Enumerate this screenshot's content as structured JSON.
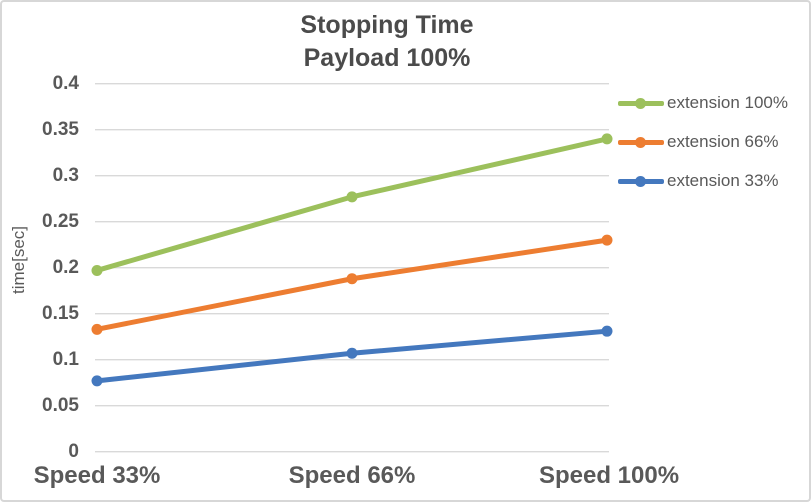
{
  "chart_data": {
    "type": "line",
    "title": "Stopping Time",
    "subtitle": "Payload 100%",
    "categories": [
      "Speed 33%",
      "Speed 66%",
      "Speed 100%"
    ],
    "series": [
      {
        "name": "extension 100%",
        "color": "#9CC05C",
        "values": [
          0.197,
          0.277,
          0.34
        ]
      },
      {
        "name": "extension 66%",
        "color": "#ED7D31",
        "values": [
          0.133,
          0.188,
          0.23
        ]
      },
      {
        "name": "extension 33%",
        "color": "#4478BE",
        "values": [
          0.077,
          0.107,
          0.131
        ]
      }
    ],
    "xlabel": "",
    "ylabel": "time[sec]",
    "ylim": [
      0,
      0.4
    ],
    "ytick_step": 0.05,
    "ytick_labels": [
      "0",
      "0.05",
      "0.1",
      "0.15",
      "0.2",
      "0.25",
      "0.3",
      "0.35",
      "0.4"
    ],
    "grid": "horizontal",
    "gridline_color": "#D9D9D9",
    "text_color": "#595959",
    "legend_position": "right",
    "marker": "circle"
  }
}
